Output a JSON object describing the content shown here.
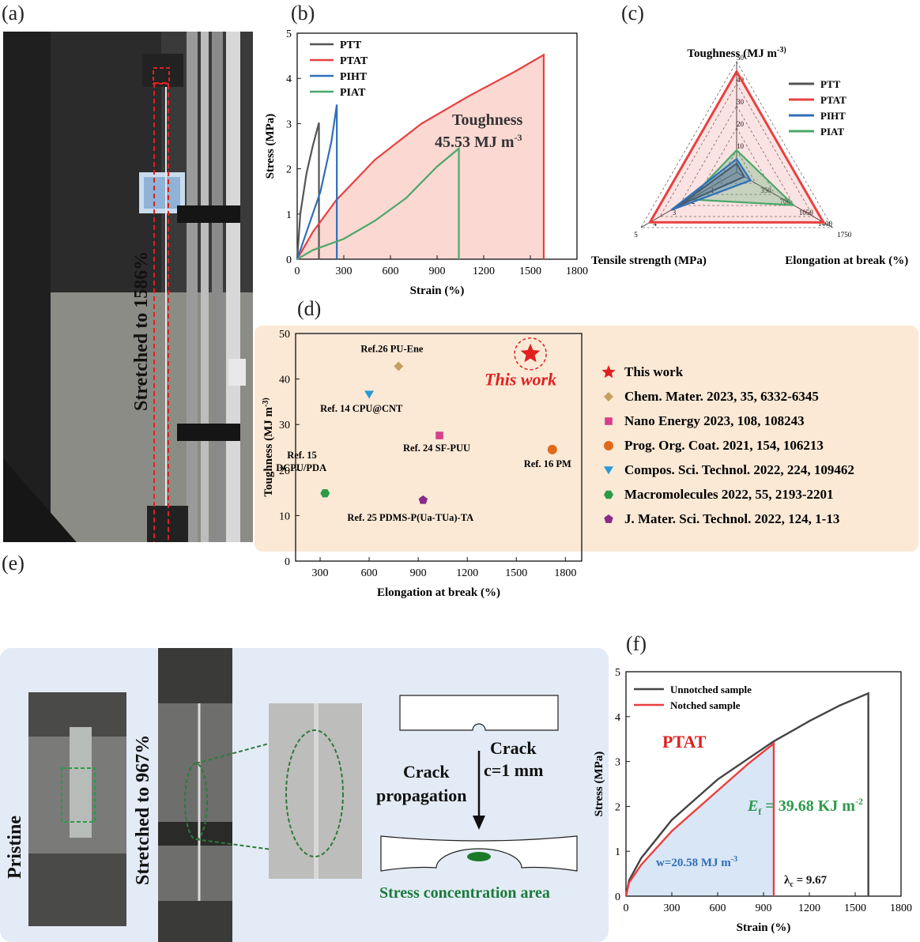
{
  "labels": {
    "a": "(a)",
    "b": "(b)",
    "c": "(c)",
    "d": "(d)",
    "e": "(e)",
    "f": "(f)"
  },
  "photo_a": {
    "caption": "Stretched to 1586%"
  },
  "panel_e": {
    "pristine": "Pristine",
    "stretched": "Stretched to 967%",
    "crack": "Crack",
    "crack_c": "c=1 mm",
    "propagation_1": "Crack",
    "propagation_2": "propagation",
    "stress_area": "Stress concentration area"
  },
  "colors": {
    "ptt": "#555555",
    "ptat": "#e84040",
    "piht": "#2f6fb8",
    "piat": "#4aa86a",
    "fill_b": "#fbd8d2",
    "bg_d": "#fbe9d6",
    "bg_e": "#e3ebf6"
  },
  "chart_data": [
    {
      "id": "b",
      "type": "line",
      "title": "",
      "xlabel": "Strain (%)",
      "ylabel": "Stress (MPa)",
      "xlim": [
        0,
        1800
      ],
      "ylim": [
        0,
        5
      ],
      "xticks": [
        0,
        300,
        600,
        900,
        1200,
        1500,
        1800
      ],
      "yticks": [
        0,
        1,
        2,
        3,
        4,
        5
      ],
      "series": [
        {
          "name": "PTT",
          "points": [
            [
              0,
              0
            ],
            [
              20,
              1.0
            ],
            [
              60,
              1.9
            ],
            [
              100,
              2.5
            ],
            [
              140,
              3.02
            ],
            [
              140,
              0
            ]
          ]
        },
        {
          "name": "PTAT",
          "points": [
            [
              0,
              0
            ],
            [
              100,
              0.6
            ],
            [
              250,
              1.3
            ],
            [
              500,
              2.2
            ],
            [
              800,
              3.0
            ],
            [
              1100,
              3.6
            ],
            [
              1400,
              4.15
            ],
            [
              1586,
              4.52
            ],
            [
              1586,
              0
            ]
          ]
        },
        {
          "name": "PIHT",
          "points": [
            [
              0,
              0
            ],
            [
              60,
              0.6
            ],
            [
              150,
              1.5
            ],
            [
              220,
              2.6
            ],
            [
              255,
              3.42
            ],
            [
              255,
              0
            ]
          ]
        },
        {
          "name": "PIAT",
          "points": [
            [
              0,
              0
            ],
            [
              100,
              0.2
            ],
            [
              300,
              0.45
            ],
            [
              500,
              0.85
            ],
            [
              700,
              1.35
            ],
            [
              900,
              2.05
            ],
            [
              1040,
              2.45
            ],
            [
              1040,
              0
            ]
          ]
        }
      ],
      "annotation": {
        "line1": "Toughness",
        "line2": "45.53 MJ m",
        "sup": "-3"
      }
    },
    {
      "id": "c",
      "type": "radar",
      "axes": [
        {
          "name": "Toughness (MJ m",
          "sup": "-3)",
          "ticks": [
            "10",
            "20",
            "30",
            "40",
            "50"
          ]
        },
        {
          "name": "Elongation at break (%)",
          "ticks": [
            "350",
            "700",
            "1050",
            "1400",
            "1750"
          ]
        },
        {
          "name": "Tensile strength (MPa)",
          "ticks": [
            "1",
            "2",
            "3",
            "4",
            "5"
          ]
        }
      ],
      "axis_max": [
        50,
        1750,
        5
      ],
      "series": [
        {
          "name": "PTT",
          "values": [
            4,
            140,
            3.02
          ]
        },
        {
          "name": "PTAT",
          "values": [
            45.53,
            1586,
            4.52
          ]
        },
        {
          "name": "PIHT",
          "values": [
            6,
            255,
            3.42
          ]
        },
        {
          "name": "PIAT",
          "values": [
            10,
            1040,
            2.45
          ]
        }
      ]
    },
    {
      "id": "d",
      "type": "scatter",
      "xlabel": "Elongation at break (%)",
      "ylabel": "Toughness (MJ m",
      "ylabel_sup": "-3)",
      "xlim": [
        150,
        1900
      ],
      "ylim": [
        0,
        50
      ],
      "xticks": [
        300,
        600,
        900,
        1200,
        1500,
        1800
      ],
      "yticks": [
        0,
        10,
        20,
        30,
        40,
        50
      ],
      "points": [
        {
          "legend": "This work",
          "label": "This work",
          "x": 1586,
          "y": 45.53,
          "marker": "star",
          "color": "#e02020"
        },
        {
          "legend": "Chem. Mater. 2023, 35, 6332-6345",
          "label": "Ref.26 PU-Ene",
          "x": 780,
          "y": 42.8,
          "marker": "diamond",
          "color": "#c4a060"
        },
        {
          "legend": "Nano Energy 2023, 108, 108243",
          "label": "Ref. 24 SF-PUU",
          "x": 1030,
          "y": 27.6,
          "marker": "square",
          "color": "#d63f8c"
        },
        {
          "legend": "Prog. Org. Coat. 2021, 154, 106213",
          "label": "Ref. 16 PM",
          "x": 1720,
          "y": 24.5,
          "marker": "circle",
          "color": "#e06a1a"
        },
        {
          "legend": "Compos. Sci. Technol. 2022, 224, 109462",
          "label": "Ref. 14 CPU@CNT",
          "x": 600,
          "y": 36.6,
          "marker": "triangle-down",
          "color": "#2a9ad6"
        },
        {
          "legend": "Macromolecules 2022, 55, 2193-2201",
          "label": "Ref. 15 DCPU/PDA",
          "x": 330,
          "y": 14.9,
          "marker": "hexagon",
          "color": "#2d9a4a"
        },
        {
          "legend": "J. Mater. Sci. Technol. 2022, 124, 1-13",
          "label": "Ref. 25 PDMS-P(Ua-TUa)-TA",
          "x": 930,
          "y": 13.4,
          "marker": "pentagon",
          "color": "#8a2a8a"
        }
      ]
    },
    {
      "id": "f",
      "type": "line",
      "xlabel": "Strain (%)",
      "ylabel": "Stress (MPa)",
      "xlim": [
        0,
        1800
      ],
      "ylim": [
        0,
        5
      ],
      "xticks": [
        0,
        300,
        600,
        900,
        1200,
        1500,
        1800
      ],
      "yticks": [
        0,
        1,
        2,
        3,
        4,
        5
      ],
      "series": [
        {
          "name": "Unnotched sample",
          "color": "#444444",
          "points": [
            [
              0,
              0
            ],
            [
              20,
              0.35
            ],
            [
              100,
              0.85
            ],
            [
              300,
              1.7
            ],
            [
              600,
              2.6
            ],
            [
              967,
              3.45
            ],
            [
              1200,
              3.9
            ],
            [
              1400,
              4.25
            ],
            [
              1586,
              4.52
            ],
            [
              1586,
              0
            ]
          ]
        },
        {
          "name": "Notched sample",
          "color": "#e84040",
          "points": [
            [
              0,
              0
            ],
            [
              20,
              0.3
            ],
            [
              100,
              0.7
            ],
            [
              300,
              1.45
            ],
            [
              600,
              2.35
            ],
            [
              800,
              2.95
            ],
            [
              967,
              3.4
            ],
            [
              967,
              0
            ]
          ]
        }
      ],
      "sample": "PTAT",
      "ef_label": "E",
      "ef_sub": "f",
      "ef_value": " = 39.68 KJ m",
      "ef_sup": "-2",
      "w_label": "w=20.58 MJ m",
      "w_sup": "-3",
      "lambda_label": "λ",
      "lambda_sub": "c",
      "lambda_value": " = 9.67"
    }
  ]
}
